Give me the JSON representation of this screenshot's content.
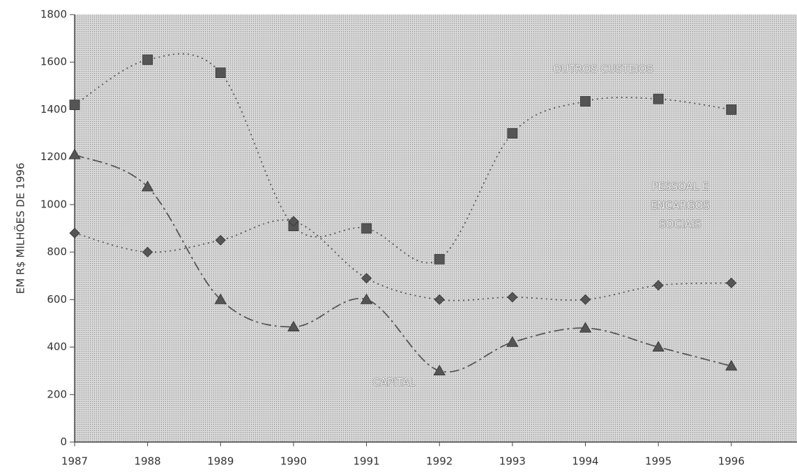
{
  "chart_data": {
    "type": "line",
    "ylabel": "EM R$ MILHÕES DE 1996",
    "x": [
      1987,
      1988,
      1989,
      1990,
      1991,
      1992,
      1993,
      1994,
      1995,
      1996
    ],
    "xlim": [
      1987,
      1996.9
    ],
    "xticks": [
      1987,
      1988,
      1989,
      1990,
      1991,
      1992,
      1993,
      1994,
      1995,
      1996
    ],
    "ylim": [
      0,
      1800
    ],
    "yticks": [
      0,
      200,
      400,
      600,
      800,
      1000,
      1200,
      1400,
      1600,
      1800
    ],
    "series": [
      {
        "name": "OUTROS CUSTEIOS",
        "color": "#555555",
        "marker": "square",
        "values": [
          1420,
          1610,
          1555,
          910,
          900,
          770,
          1300,
          1435,
          1445,
          1400
        ]
      },
      {
        "name": "PESSOAL E ENCARGOS SOCIAIS",
        "color": "#555555",
        "marker": "diamond",
        "values": [
          880,
          800,
          850,
          930,
          690,
          600,
          610,
          600,
          660,
          670
        ]
      },
      {
        "name": "CAPITAL",
        "color": "#555555",
        "marker": "triangle",
        "values": [
          1210,
          1075,
          600,
          485,
          600,
          300,
          420,
          480,
          400,
          320
        ]
      }
    ]
  }
}
